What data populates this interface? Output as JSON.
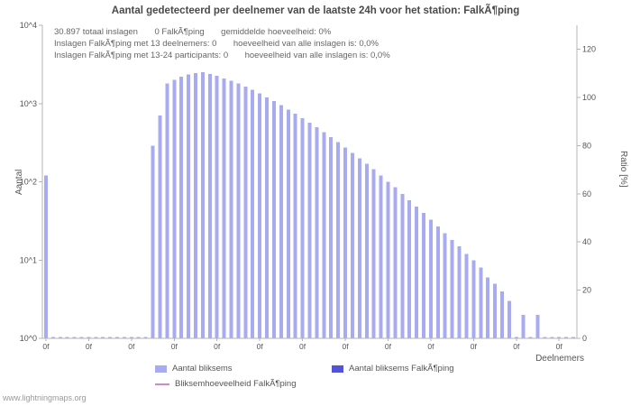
{
  "title": "Aantal gedetecteerd per deelnemer van de laatste 24h voor het station: FalkÃ¶ping",
  "annotations": {
    "line1": "30.897 totaal inslagen       0 FalkÃ¶ping       gemiddelde hoeveelheid: 0%",
    "line2": "Inslagen FalkÃ¶ping met 13 deelnemers: 0       hoeveelheid van alle inslagen is: 0,0%",
    "line3": "Inslagen FalkÃ¶ping met 13-24 participants: 0       hoeveelheid van alle inslagen is: 0,0%"
  },
  "axes": {
    "left_title": "Aantal",
    "right_title": "Ratio [%]",
    "x_title": "Deelnemers"
  },
  "legend": {
    "items": [
      {
        "label": "Aantal bliksems",
        "type": "bar"
      },
      {
        "label": "Aantal bliksems FalkÃ¶ping",
        "type": "bar"
      },
      {
        "label": "Bliksemhoeveelheid FalkÃ¶ping",
        "type": "line"
      }
    ]
  },
  "watermark": "www.lightningmaps.org",
  "colors": {
    "bar": "#a9abf0",
    "bar_falkoping": "#5353d6",
    "ratio_line": "#cc8ccc",
    "axis": "#b5b5b5"
  },
  "chart_data": {
    "type": "bar",
    "title": "Aantal gedetecteerd per deelnemer van de laatste 24h voor het station: FalkÃ¶ping",
    "xlabel": "Deelnemers",
    "ylabel": "Aantal",
    "y2label": "Ratio [%]",
    "y_scale": "log",
    "ylim": [
      1,
      10000
    ],
    "y2lim": [
      0,
      130
    ],
    "left_tick_values": [
      1,
      10,
      100,
      1000,
      10000
    ],
    "left_tick_labels": [
      "10^0",
      "10^1",
      "10^2",
      "10^3",
      "10^4"
    ],
    "right_tick_values": [
      0,
      20,
      40,
      60,
      80,
      100,
      120
    ],
    "x_tick_label": "0f",
    "x_tick_every": 6,
    "grid": false,
    "legend_position": "bottom",
    "total_strikes": "30.897",
    "falkoping_values_constant": 0,
    "ratio_line_constant_percent": 0,
    "values": [
      120,
      0,
      0,
      0,
      0,
      0,
      0,
      0,
      0,
      0,
      0,
      0,
      0,
      0,
      0,
      290,
      700,
      1800,
      2000,
      2200,
      2350,
      2450,
      2500,
      2400,
      2250,
      2100,
      1950,
      1800,
      1650,
      1500,
      1350,
      1200,
      1070,
      950,
      840,
      740,
      650,
      570,
      500,
      430,
      370,
      320,
      275,
      235,
      200,
      170,
      145,
      120,
      100,
      85,
      70,
      58,
      48,
      40,
      33,
      27,
      22,
      18,
      15,
      12,
      10,
      8,
      6,
      5,
      4,
      3,
      0,
      2,
      0,
      2,
      0,
      0,
      0,
      0,
      0
    ]
  }
}
